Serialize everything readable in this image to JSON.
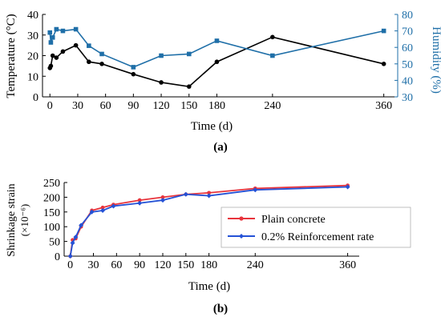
{
  "colors": {
    "temperature": "#000000",
    "humidity": "#1f6fa8",
    "plain": "#e8343c",
    "reinforced": "#2452d6"
  },
  "chart_data": [
    {
      "type": "line",
      "panel_label": "(a)",
      "xlabel": "Time (d)",
      "ylabel": "Temperature (°C)",
      "y2label": "Humidity (%)",
      "xlim": [
        -8,
        375
      ],
      "ylim": [
        0,
        40
      ],
      "y2lim": [
        30,
        80
      ],
      "xticks": [
        0,
        30,
        60,
        90,
        120,
        150,
        180,
        240,
        360
      ],
      "yticks": [
        0,
        10,
        20,
        30,
        40
      ],
      "y2ticks": [
        30,
        40,
        50,
        60,
        70,
        80
      ],
      "series": [
        {
          "axis": "left",
          "marker": "circle",
          "x": [
            0,
            1,
            3,
            7,
            14,
            28,
            42,
            56,
            90,
            120,
            150,
            180,
            240,
            360
          ],
          "y": [
            14,
            15,
            20,
            19,
            22,
            25,
            17,
            16,
            11,
            7,
            5,
            17,
            29,
            16
          ]
        },
        {
          "axis": "right",
          "marker": "square",
          "x": [
            0,
            1,
            3,
            7,
            14,
            28,
            42,
            56,
            90,
            120,
            150,
            180,
            240,
            360
          ],
          "y": [
            69,
            63,
            66,
            71,
            70,
            71,
            61,
            56,
            48,
            55,
            56,
            64,
            55,
            70
          ]
        }
      ]
    },
    {
      "type": "line",
      "panel_label": "(b)",
      "xlabel": "Time (d)",
      "ylabel": "Shrinkage strain",
      "ylabel_unit": "(×10⁻⁶)",
      "xlim": [
        -8,
        375
      ],
      "ylim": [
        0,
        250
      ],
      "xticks": [
        0,
        30,
        60,
        90,
        120,
        150,
        180,
        240,
        360
      ],
      "yticks": [
        0,
        50,
        100,
        150,
        200,
        250
      ],
      "legend_position": "center-right",
      "series": [
        {
          "name": "Plain concrete",
          "marker": "circle",
          "x": [
            0,
            3,
            7,
            14,
            28,
            42,
            56,
            90,
            120,
            150,
            180,
            240,
            360
          ],
          "y": [
            0,
            55,
            60,
            100,
            155,
            165,
            175,
            190,
            200,
            210,
            215,
            230,
            240
          ]
        },
        {
          "name": "0.2% Reinforcement rate",
          "marker": "diamond",
          "x": [
            0,
            3,
            7,
            14,
            28,
            42,
            56,
            90,
            120,
            150,
            180,
            240,
            360
          ],
          "y": [
            0,
            45,
            65,
            105,
            150,
            155,
            170,
            180,
            190,
            210,
            205,
            225,
            235
          ]
        }
      ]
    }
  ]
}
